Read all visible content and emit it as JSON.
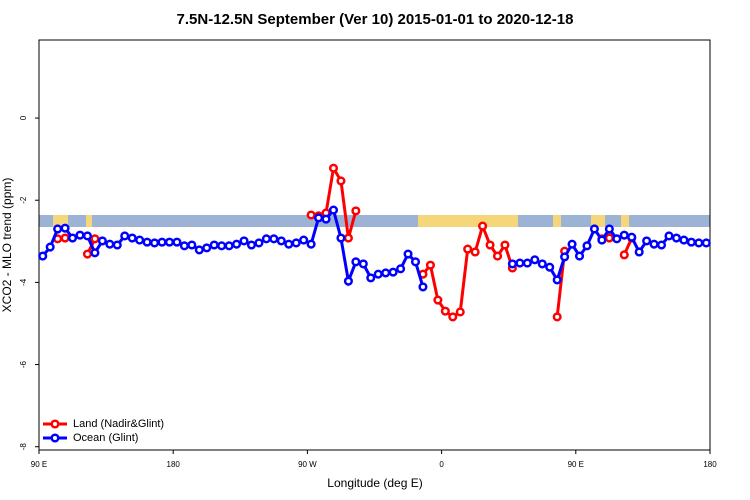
{
  "chart_data": {
    "type": "line",
    "title": "7.5N-12.5N September (Ver 10)   2015-01-01 to 2020-12-18",
    "x_label": "Longitude (deg E)",
    "y_label": "XCO2 - MLO trend (ppm)",
    "x": [
      92.5,
      97.5,
      102.5,
      107.5,
      112.5,
      117.5,
      122.5,
      127.5,
      132.5,
      137.5,
      142.5,
      147.5,
      152.5,
      157.5,
      162.5,
      167.5,
      172.5,
      177.5,
      182.5,
      187.5,
      192.5,
      197.5,
      202.5,
      207.5,
      212.5,
      217.5,
      222.5,
      227.5,
      232.5,
      237.5,
      242.5,
      247.5,
      252.5,
      257.5,
      262.5,
      267.5,
      272.5,
      277.5,
      282.5,
      287.5,
      292.5,
      297.5,
      302.5,
      307.5,
      312.5,
      317.5,
      322.5,
      327.5,
      332.5,
      337.5,
      342.5,
      347.5,
      352.5,
      357.5,
      362.5,
      367.5,
      372.5,
      377.5,
      382.5,
      387.5,
      392.5,
      397.5,
      402.5,
      407.5,
      412.5,
      417.5,
      422.5,
      427.5,
      432.5,
      437.5,
      442.5,
      447.5,
      452.5,
      457.5,
      462.5,
      467.5,
      472.5,
      477.5,
      482.5,
      487.5,
      492.5,
      497.5,
      502.5,
      507.5,
      512.5,
      517.5,
      522.5,
      527.5,
      532.5,
      537.5
    ],
    "series": [
      {
        "name": "Land (Nadir&Glint)",
        "color": "#ff0000",
        "values": [
          null,
          null,
          -2.94,
          -2.92,
          null,
          null,
          -3.31,
          -2.94,
          null,
          null,
          null,
          null,
          null,
          null,
          null,
          null,
          null,
          null,
          null,
          null,
          null,
          null,
          null,
          null,
          null,
          null,
          null,
          null,
          null,
          null,
          null,
          null,
          null,
          null,
          null,
          null,
          -2.36,
          -2.38,
          -2.31,
          -1.22,
          -1.53,
          -2.92,
          -2.26,
          null,
          null,
          null,
          null,
          null,
          null,
          null,
          null,
          -3.8,
          -3.58,
          -4.43,
          -4.7,
          -4.84,
          -4.72,
          -3.19,
          -3.26,
          -2.63,
          -3.09,
          -3.36,
          -3.09,
          -3.65,
          null,
          null,
          null,
          null,
          null,
          -4.84,
          -3.24,
          null,
          null,
          null,
          null,
          -2.94,
          -2.92,
          null,
          -3.33,
          -2.92,
          null,
          null,
          null,
          null,
          null,
          null,
          null,
          null,
          null,
          null
        ]
      },
      {
        "name": "Ocean (Glint)",
        "color": "#0000ff",
        "values": [
          -3.36,
          -3.14,
          -2.7,
          -2.68,
          -2.92,
          -2.85,
          -2.87,
          -3.28,
          -2.99,
          -3.07,
          -3.09,
          -2.87,
          -2.92,
          -2.97,
          -3.02,
          -3.04,
          -3.02,
          -3.02,
          -3.02,
          -3.11,
          -3.09,
          -3.21,
          -3.16,
          -3.09,
          -3.11,
          -3.11,
          -3.07,
          -2.99,
          -3.09,
          -3.04,
          -2.94,
          -2.94,
          -2.99,
          -3.07,
          -3.04,
          -2.97,
          -3.07,
          -2.43,
          -2.46,
          -2.24,
          -2.92,
          -3.97,
          -3.5,
          -3.55,
          -3.89,
          -3.8,
          -3.77,
          -3.75,
          -3.67,
          -3.31,
          -3.5,
          -4.11,
          null,
          null,
          null,
          null,
          null,
          null,
          null,
          null,
          null,
          null,
          null,
          -3.55,
          -3.53,
          -3.53,
          -3.45,
          -3.55,
          -3.63,
          -3.94,
          -3.38,
          -3.07,
          -3.36,
          -3.11,
          -2.7,
          -2.97,
          -2.7,
          -2.94,
          -2.85,
          -2.9,
          -3.26,
          -2.99,
          -3.07,
          -3.09,
          -2.87,
          -2.92,
          -2.97,
          -3.02,
          -3.04,
          -3.04
        ]
      }
    ],
    "xlim": [
      90,
      540
    ],
    "xticks": [
      {
        "value": 90,
        "label": "90 E"
      },
      180,
      {
        "value": 270,
        "label": "90 W"
      },
      {
        "value": 360,
        "label": "0"
      },
      {
        "value": 450,
        "label": "90 E"
      },
      {
        "value": 540,
        "label": "180"
      }
    ],
    "ylim": [
      -8.08,
      1.9
    ],
    "yticks": [
      0,
      -2,
      -4,
      -6,
      -8
    ],
    "legend": "bottom-left"
  }
}
